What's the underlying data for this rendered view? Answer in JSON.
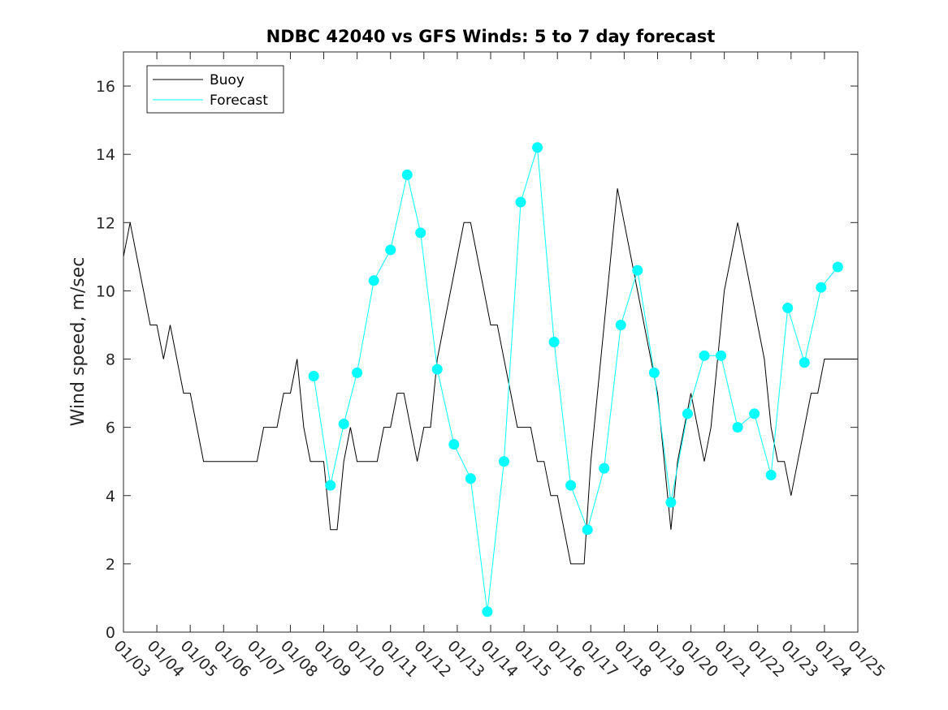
{
  "chart_data": {
    "type": "line",
    "title": "NDBC 42040 vs GFS Winds: 5 to 7 day forecast",
    "xlabel": "",
    "ylabel": "Wind speed, m/sec",
    "xlim": [
      0,
      22
    ],
    "ylim": [
      0,
      17
    ],
    "x_tick_labels": [
      "01/03",
      "01/04",
      "01/05",
      "01/06",
      "01/07",
      "01/08",
      "01/09",
      "01/10",
      "01/11",
      "01/12",
      "01/13",
      "01/14",
      "01/15",
      "01/16",
      "01/17",
      "01/18",
      "01/19",
      "01/20",
      "01/21",
      "01/22",
      "01/23",
      "01/24",
      "01/25"
    ],
    "y_ticks": [
      0,
      2,
      4,
      6,
      8,
      10,
      12,
      14,
      16
    ],
    "legend": {
      "position": "top-left",
      "entries": [
        {
          "label": "Buoy",
          "color": "#000000"
        },
        {
          "label": "Forecast",
          "color": "#00ffff"
        }
      ]
    },
    "series": [
      {
        "name": "Buoy",
        "color": "#000000",
        "points": [
          [
            0,
            11
          ],
          [
            0.2,
            12
          ],
          [
            0.4,
            11
          ],
          [
            0.6,
            10
          ],
          [
            0.8,
            9
          ],
          [
            1.0,
            9
          ],
          [
            1.2,
            8
          ],
          [
            1.4,
            9
          ],
          [
            1.6,
            8
          ],
          [
            1.8,
            7
          ],
          [
            2.0,
            7
          ],
          [
            2.2,
            6
          ],
          [
            2.4,
            5
          ],
          [
            2.6,
            5
          ],
          [
            2.8,
            5
          ],
          [
            3.0,
            5
          ],
          [
            3.2,
            5
          ],
          [
            3.4,
            5
          ],
          [
            3.6,
            5
          ],
          [
            3.8,
            5
          ],
          [
            4.0,
            5
          ],
          [
            4.2,
            6
          ],
          [
            4.4,
            6
          ],
          [
            4.6,
            6
          ],
          [
            4.8,
            7
          ],
          [
            5.0,
            7
          ],
          [
            5.2,
            8
          ],
          [
            5.4,
            6
          ],
          [
            5.6,
            5
          ],
          [
            5.8,
            5
          ],
          [
            6.0,
            5
          ],
          [
            6.2,
            3
          ],
          [
            6.4,
            3
          ],
          [
            6.6,
            5
          ],
          [
            6.8,
            6
          ],
          [
            7.0,
            5
          ],
          [
            7.2,
            5
          ],
          [
            7.4,
            5
          ],
          [
            7.6,
            5
          ],
          [
            7.8,
            6
          ],
          [
            8.0,
            6
          ],
          [
            8.2,
            7
          ],
          [
            8.4,
            7
          ],
          [
            8.6,
            6
          ],
          [
            8.8,
            5
          ],
          [
            9.0,
            6
          ],
          [
            9.2,
            6
          ],
          [
            9.4,
            8
          ],
          [
            9.6,
            9
          ],
          [
            9.8,
            10
          ],
          [
            10.0,
            11
          ],
          [
            10.2,
            12
          ],
          [
            10.4,
            12
          ],
          [
            10.6,
            11
          ],
          [
            10.8,
            10
          ],
          [
            11.0,
            9
          ],
          [
            11.2,
            9
          ],
          [
            11.4,
            8
          ],
          [
            11.6,
            7
          ],
          [
            11.8,
            6
          ],
          [
            12.0,
            6
          ],
          [
            12.2,
            6
          ],
          [
            12.4,
            5
          ],
          [
            12.6,
            5
          ],
          [
            12.8,
            4
          ],
          [
            13.0,
            4
          ],
          [
            13.2,
            3
          ],
          [
            13.4,
            2
          ],
          [
            13.6,
            2
          ],
          [
            13.8,
            2
          ],
          [
            14.0,
            5
          ],
          [
            14.2,
            7
          ],
          [
            14.4,
            9
          ],
          [
            14.6,
            11
          ],
          [
            14.8,
            13
          ],
          [
            15.0,
            12
          ],
          [
            15.2,
            11
          ],
          [
            15.4,
            10
          ],
          [
            15.6,
            9
          ],
          [
            15.8,
            8
          ],
          [
            16.0,
            7
          ],
          [
            16.2,
            5
          ],
          [
            16.4,
            3
          ],
          [
            16.6,
            5
          ],
          [
            16.8,
            6
          ],
          [
            17.0,
            7
          ],
          [
            17.2,
            6
          ],
          [
            17.4,
            5
          ],
          [
            17.6,
            6
          ],
          [
            17.8,
            8
          ],
          [
            18.0,
            10
          ],
          [
            18.2,
            11
          ],
          [
            18.4,
            12
          ],
          [
            18.6,
            11
          ],
          [
            18.8,
            10
          ],
          [
            19.0,
            9
          ],
          [
            19.2,
            8
          ],
          [
            19.4,
            6
          ],
          [
            19.6,
            5
          ],
          [
            19.8,
            5
          ],
          [
            20.0,
            4
          ],
          [
            20.2,
            5
          ],
          [
            20.4,
            6
          ],
          [
            20.6,
            7
          ],
          [
            20.8,
            7
          ],
          [
            21.0,
            8
          ],
          [
            21.2,
            8
          ],
          [
            21.4,
            8
          ],
          [
            21.6,
            8
          ],
          [
            21.8,
            8
          ],
          [
            22.0,
            8
          ]
        ]
      },
      {
        "name": "Forecast",
        "color": "#00ffff",
        "points": [
          [
            5.7,
            7.5
          ],
          [
            6.2,
            4.3
          ],
          [
            6.6,
            6.1
          ],
          [
            7.0,
            7.6
          ],
          [
            7.5,
            10.3
          ],
          [
            8.0,
            11.2
          ],
          [
            8.5,
            13.4
          ],
          [
            8.9,
            11.7
          ],
          [
            9.4,
            7.7
          ],
          [
            9.9,
            5.5
          ],
          [
            10.4,
            4.5
          ],
          [
            10.9,
            0.6
          ],
          [
            11.4,
            5.0
          ],
          [
            11.9,
            12.6
          ],
          [
            12.4,
            14.2
          ],
          [
            12.9,
            8.5
          ],
          [
            13.4,
            4.3
          ],
          [
            13.9,
            3.0
          ],
          [
            14.4,
            4.8
          ],
          [
            14.9,
            9.0
          ],
          [
            15.4,
            10.6
          ],
          [
            15.9,
            7.6
          ],
          [
            16.4,
            3.8
          ],
          [
            16.9,
            6.4
          ],
          [
            17.4,
            8.1
          ],
          [
            17.9,
            8.1
          ],
          [
            18.4,
            6.0
          ],
          [
            18.9,
            6.4
          ],
          [
            19.4,
            4.6
          ],
          [
            19.9,
            9.5
          ],
          [
            20.4,
            7.9
          ],
          [
            20.9,
            10.1
          ],
          [
            21.4,
            10.7
          ]
        ]
      }
    ],
    "forecast_markers": [
      {
        "x": 5.7,
        "y": 7.5
      },
      {
        "x": 6.2,
        "y": 4.3
      },
      {
        "x": 6.6,
        "y": 6.1
      },
      {
        "x": 7.0,
        "y": 7.6
      },
      {
        "x": 7.5,
        "y": 10.3
      },
      {
        "x": 8.0,
        "y": 11.2
      },
      {
        "x": 8.5,
        "y": 13.4
      },
      {
        "x": 8.9,
        "y": 11.7
      },
      {
        "x": 9.4,
        "y": 7.7
      },
      {
        "x": 9.9,
        "y": 5.5
      },
      {
        "x": 10.4,
        "y": 4.5
      },
      {
        "x": 10.9,
        "y": 0.6
      },
      {
        "x": 11.4,
        "y": 5.0
      },
      {
        "x": 11.9,
        "y": 12.6
      },
      {
        "x": 12.4,
        "y": 14.2
      },
      {
        "x": 12.9,
        "y": 8.5
      },
      {
        "x": 13.4,
        "y": 4.3
      },
      {
        "x": 13.9,
        "y": 3.0
      },
      {
        "x": 14.4,
        "y": 4.8
      },
      {
        "x": 14.9,
        "y": 9.0
      },
      {
        "x": 15.4,
        "y": 10.6
      },
      {
        "x": 15.9,
        "y": 7.6
      },
      {
        "x": 16.4,
        "y": 3.8
      },
      {
        "x": 16.9,
        "y": 6.4
      },
      {
        "x": 17.4,
        "y": 8.1
      },
      {
        "x": 17.9,
        "y": 8.1
      },
      {
        "x": 18.4,
        "y": 6.0
      },
      {
        "x": 18.9,
        "y": 6.4
      },
      {
        "x": 19.4,
        "y": 4.6
      },
      {
        "x": 19.9,
        "y": 9.5
      },
      {
        "x": 20.4,
        "y": 7.9
      },
      {
        "x": 20.9,
        "y": 10.1
      },
      {
        "x": 21.4,
        "y": 10.7
      }
    ]
  }
}
